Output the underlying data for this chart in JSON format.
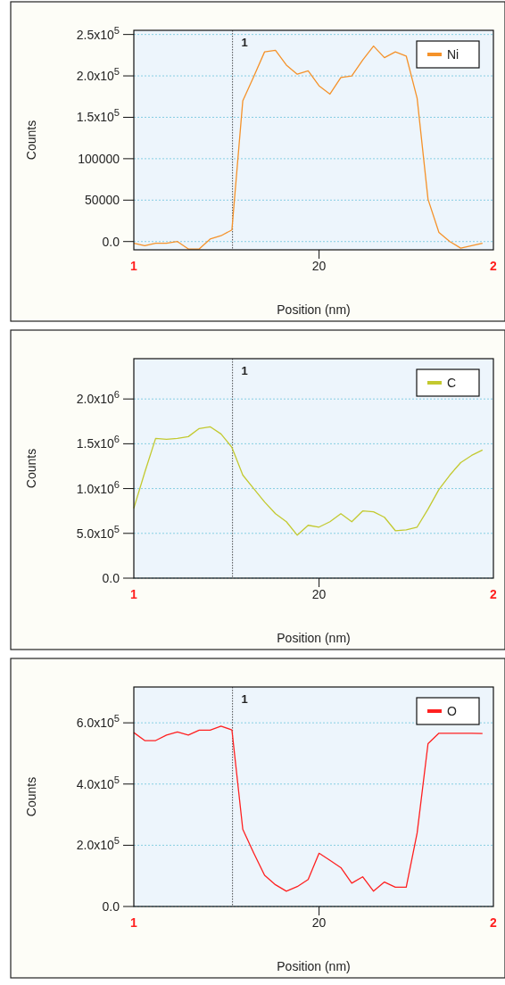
{
  "chart_data": [
    {
      "type": "line",
      "xlabel": "Position (nm)",
      "ylabel": "Counts",
      "categories": [
        "1",
        null,
        null,
        null,
        null,
        null,
        null,
        null,
        null,
        null,
        null,
        null,
        null,
        null,
        null,
        null,
        null,
        "20",
        null,
        null,
        null,
        null,
        null,
        null,
        null,
        null,
        null,
        null,
        null,
        null,
        null,
        null,
        null,
        "2"
      ],
      "ylim": [
        -10000,
        255000
      ],
      "yticks": [
        {
          "value": 0,
          "label": "0.0"
        },
        50000,
        100000,
        {
          "value": 150000,
          "label": "1.5x10$^{5}$"
        },
        {
          "value": 200000,
          "label": "2.0x10$^{5}$"
        },
        {
          "value": 250000,
          "label": "2.5x10$^{5}$"
        }
      ],
      "grid": "y",
      "legend": "top right",
      "annotations": [
        "1"
      ],
      "series": [
        {
          "name": "Ni",
          "color": "#f5922a",
          "values": [
            -2000,
            -5000,
            -2000,
            -2000,
            0,
            -9000,
            -9000,
            3000,
            7000,
            14000,
            170000,
            199000,
            229000,
            231000,
            213000,
            202000,
            206000,
            188000,
            178000,
            198000,
            200000,
            219000,
            236000,
            222000,
            229000,
            224000,
            173000,
            51000,
            11000,
            0,
            -8000,
            -5000,
            -2000,
            null
          ]
        }
      ]
    },
    {
      "type": "line",
      "xlabel": "Position (nm)",
      "ylabel": "Counts",
      "categories": [
        "1",
        null,
        null,
        null,
        null,
        null,
        null,
        null,
        null,
        null,
        null,
        null,
        null,
        null,
        null,
        null,
        null,
        "20",
        null,
        null,
        null,
        null,
        null,
        null,
        null,
        null,
        null,
        null,
        null,
        null,
        null,
        null,
        null,
        "2"
      ],
      "ylim": [
        0,
        2450000
      ],
      "yticks": [
        {
          "value": 0,
          "label": "0.0"
        },
        {
          "value": 500000,
          "label": "5.0x10$^{5}$"
        },
        {
          "value": 1000000,
          "label": "1.0x10$^{6}$"
        },
        {
          "value": 1500000,
          "label": "1.5x10$^{6}$"
        },
        {
          "value": 2000000,
          "label": "2.0x10$^{6}$"
        }
      ],
      "grid": "y",
      "legend": "top right",
      "annotations": [
        "1"
      ],
      "series": [
        {
          "name": "C",
          "color": "#c3c92f",
          "values": [
            780000,
            1180000,
            1560000,
            1550000,
            1560000,
            1580000,
            1670000,
            1690000,
            1610000,
            1460000,
            1150000,
            1000000,
            850000,
            720000,
            630000,
            480000,
            590000,
            570000,
            630000,
            720000,
            630000,
            750000,
            740000,
            680000,
            530000,
            540000,
            570000,
            770000,
            990000,
            1150000,
            1290000,
            1370000,
            1430000,
            null
          ]
        }
      ]
    },
    {
      "type": "line",
      "xlabel": "Position (nm)",
      "ylabel": "Counts",
      "categories": [
        "1",
        null,
        null,
        null,
        null,
        null,
        null,
        null,
        null,
        null,
        null,
        null,
        null,
        null,
        null,
        null,
        null,
        "20",
        null,
        null,
        null,
        null,
        null,
        null,
        null,
        null,
        null,
        null,
        null,
        null,
        null,
        null,
        null,
        "2"
      ],
      "ylim": [
        0,
        717000
      ],
      "yticks": [
        {
          "value": 0,
          "label": "0.0"
        },
        {
          "value": 200000,
          "label": "2.0x10$^{5}$"
        },
        {
          "value": 400000,
          "label": "4.0x10$^{5}$"
        },
        {
          "value": 600000,
          "label": "6.0x10$^{5}$"
        }
      ],
      "grid": "y",
      "legend": "top right",
      "annotations": [
        "1"
      ],
      "series": [
        {
          "name": "O",
          "color": "#ff2020",
          "values": [
            568000,
            542000,
            542000,
            560000,
            570000,
            560000,
            576000,
            576000,
            589000,
            577000,
            252000,
            175000,
            102000,
            71000,
            50000,
            65000,
            88000,
            174000,
            151000,
            127000,
            76000,
            97000,
            50000,
            80000,
            63000,
            63000,
            240000,
            532000,
            566000,
            566000,
            566000,
            566000,
            565000,
            null
          ]
        }
      ]
    }
  ]
}
